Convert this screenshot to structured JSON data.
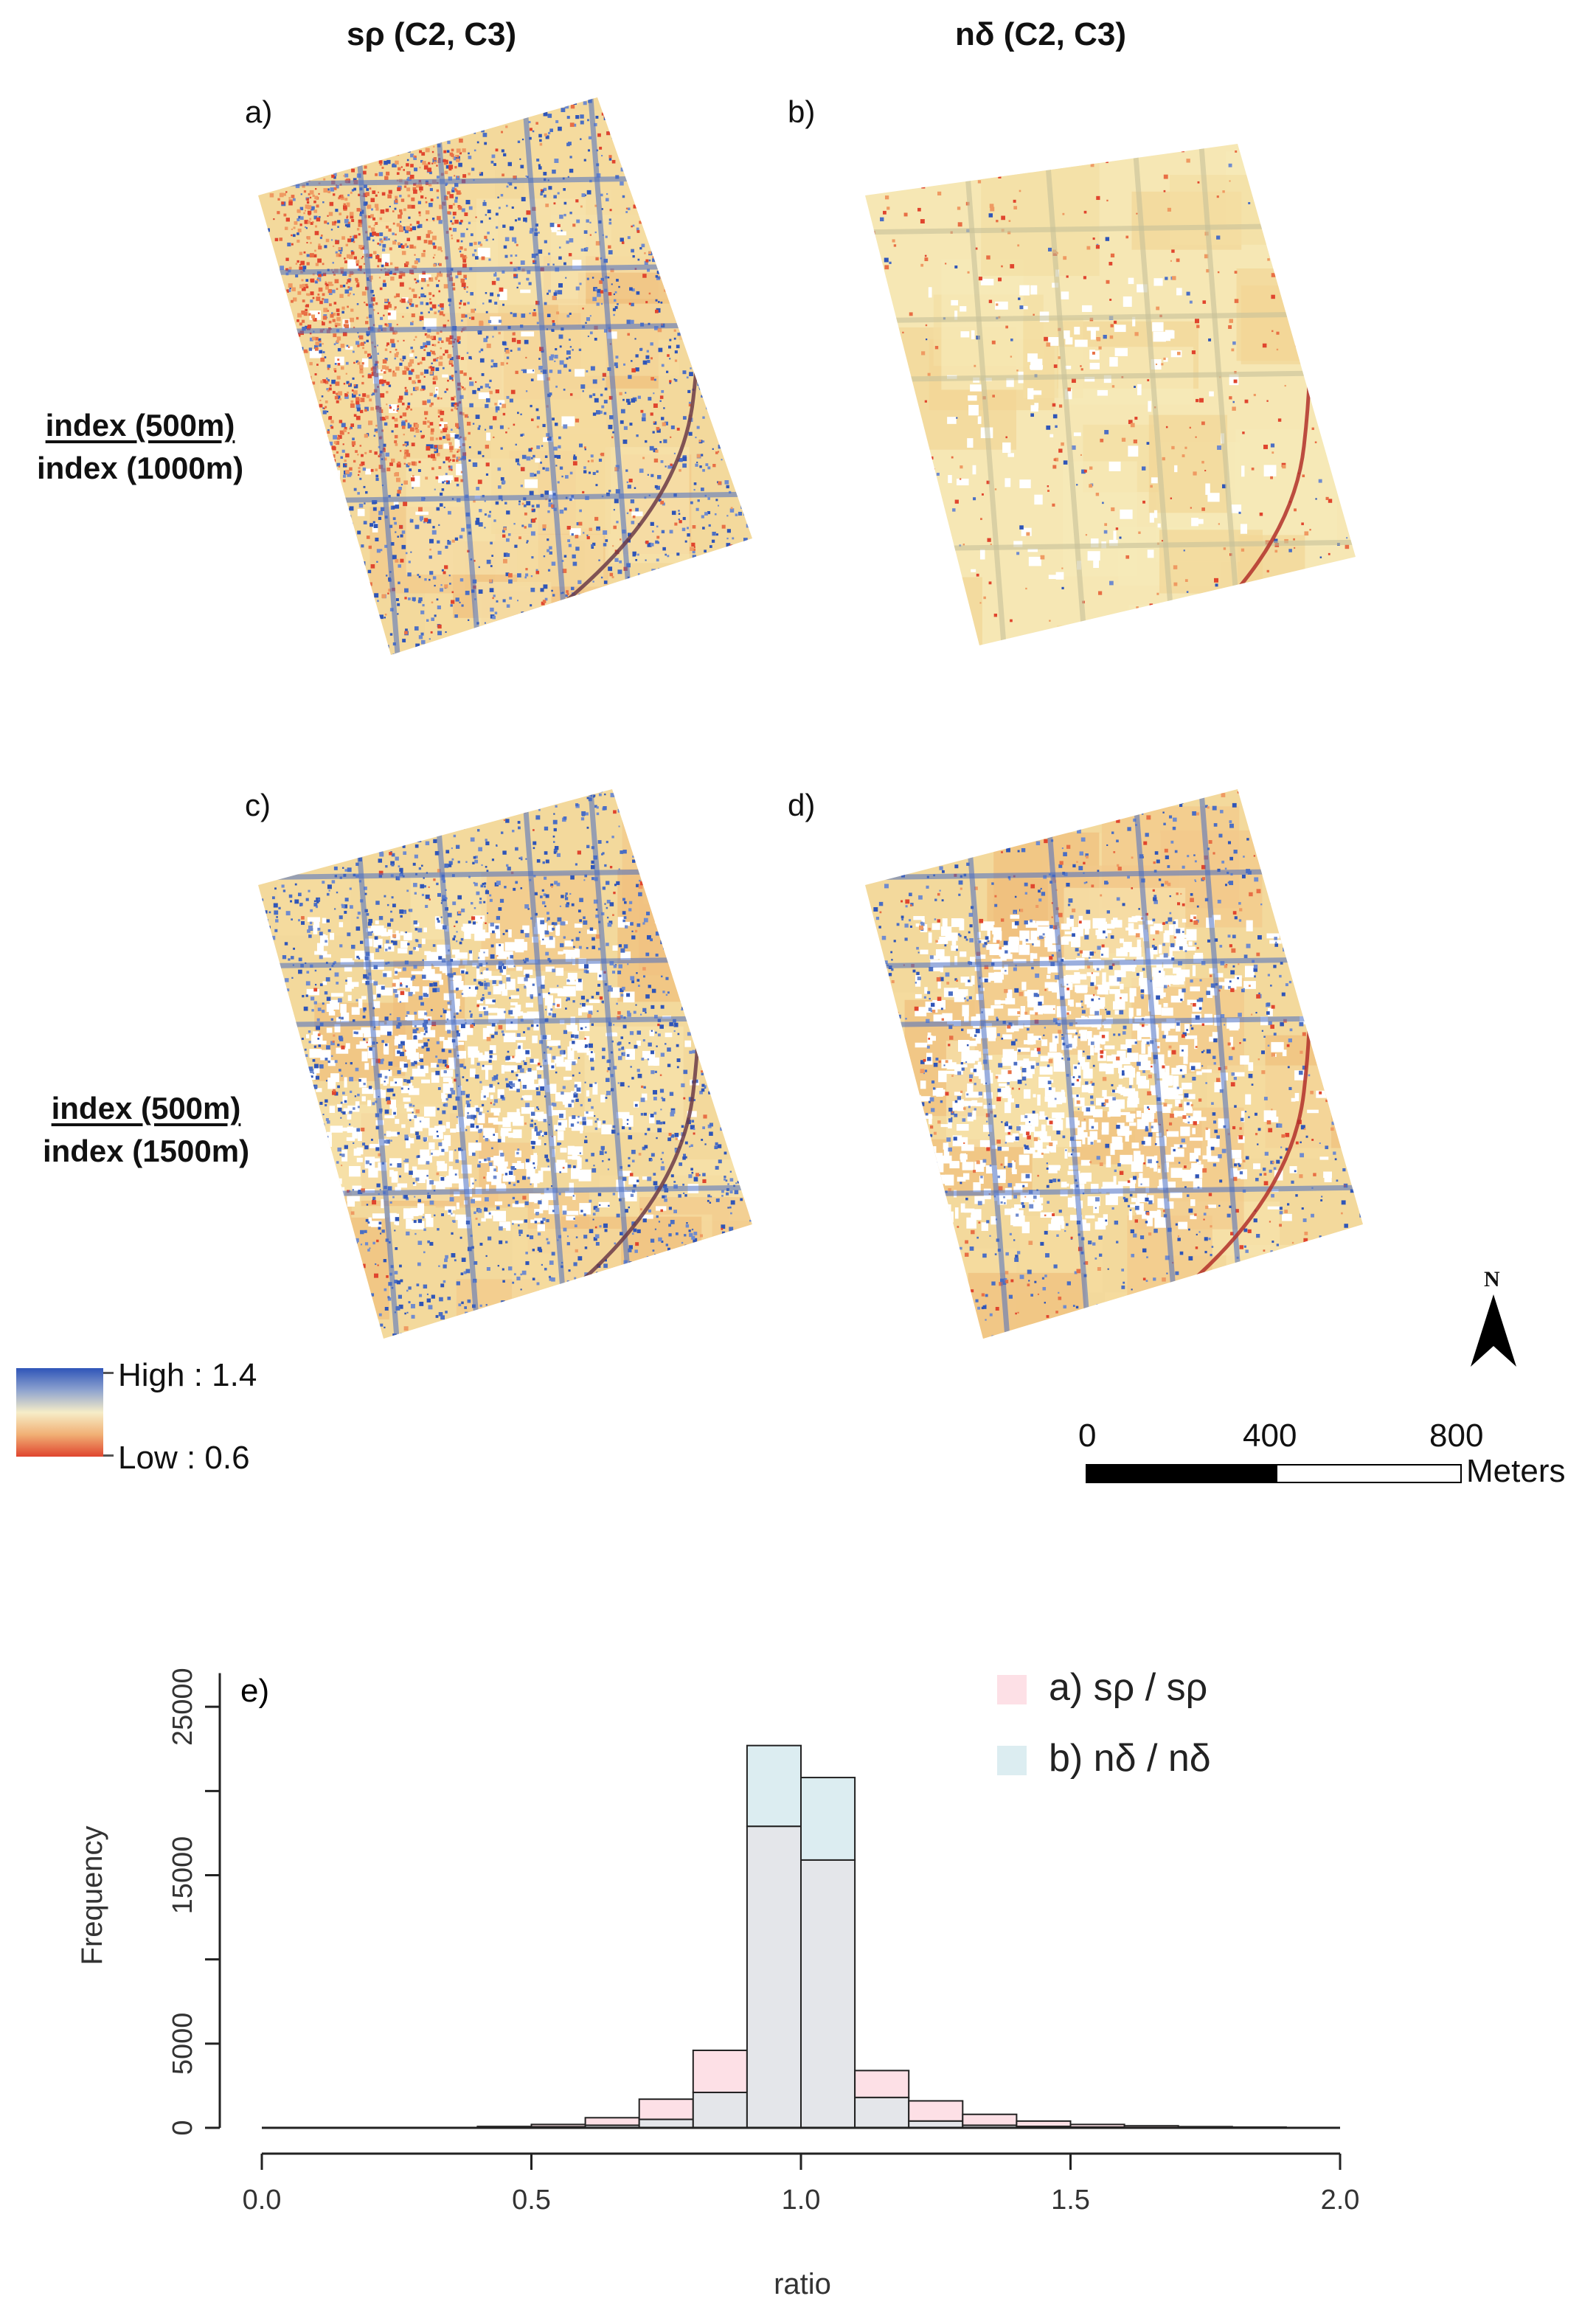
{
  "figure": {
    "column_titles": [
      "sρ (C2, C3)",
      "nδ (C2, C3)"
    ],
    "row_labels": [
      {
        "top": "index (500m)",
        "bottom": "index (1000m)"
      },
      {
        "top": "index (500m)",
        "bottom": "index (1500m)"
      }
    ],
    "panels": [
      {
        "label": "a)",
        "variant": "a"
      },
      {
        "label": "b)",
        "variant": "b"
      },
      {
        "label": "c)",
        "variant": "c"
      },
      {
        "label": "d)",
        "variant": "d"
      }
    ],
    "colorbar": {
      "high_label": "High : 1.4",
      "low_label": "Low : 0.6",
      "colors": [
        "#2f55b8",
        "#8ea3cf",
        "#f6edc8",
        "#f1b075",
        "#e0452e"
      ]
    },
    "north_arrow": {
      "label": "N"
    },
    "scale_bar": {
      "ticks": [
        "0",
        "400",
        "800"
      ],
      "unit": "Meters"
    }
  },
  "chart_data": {
    "type": "histogram",
    "panel_label": "e)",
    "xlabel": "ratio",
    "ylabel": "Frequency",
    "xlim": [
      0.0,
      2.0
    ],
    "ylim": [
      0,
      30000
    ],
    "x_ticks": [
      "0.0",
      "0.5",
      "1.0",
      "1.5",
      "2.0"
    ],
    "y_ticks": [
      "0",
      "5000",
      "15000",
      "25000"
    ],
    "bin_edges": [
      0.4,
      0.5,
      0.6,
      0.7,
      0.8,
      0.9,
      1.0,
      1.1,
      1.2,
      1.3,
      1.4,
      1.5,
      1.6,
      1.7,
      1.8,
      1.9
    ],
    "series": [
      {
        "name": "a) sρ / sρ",
        "color": "#fde0e6",
        "values": [
          80,
          200,
          600,
          1700,
          4600,
          17900,
          15900,
          3400,
          1600,
          800,
          400,
          200,
          120,
          70,
          40
        ]
      },
      {
        "name": "b) nδ / nδ",
        "color": "#dcedf1",
        "values": [
          30,
          60,
          150,
          500,
          2100,
          22700,
          20800,
          1800,
          400,
          150,
          80,
          40,
          20,
          10,
          5
        ]
      }
    ],
    "overlap_color": "#e4e6ea"
  }
}
